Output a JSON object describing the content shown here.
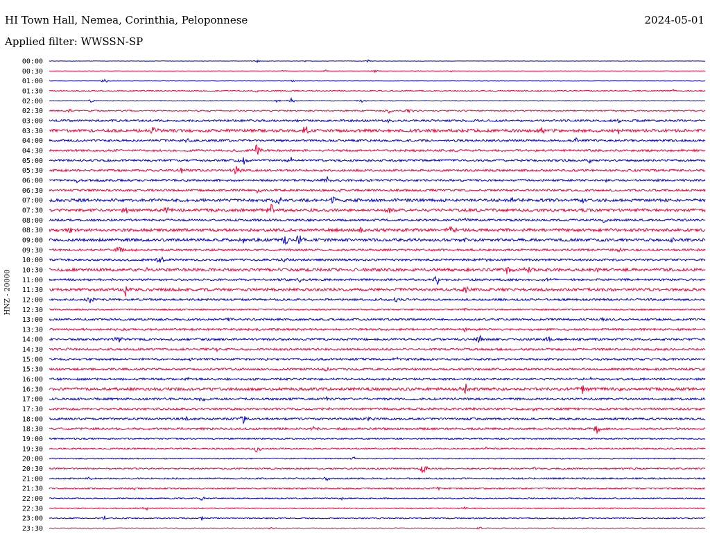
{
  "header": {
    "station": "HI Town Hall, Nemea, Corinthia, Peloponnese",
    "date": "2024-05-01",
    "filter": "Applied filter: WWSSN-SP"
  },
  "chart_data": {
    "type": "line",
    "title": "HI Town Hall, Nemea, Corinthia, Peloponnese",
    "ylabel": "HNZ - 20000",
    "colors": {
      "even": "#0000cc",
      "odd": "#ee0033"
    },
    "rows": [
      {
        "label": "00:00",
        "noise": 0.3,
        "bursts": [
          [
            150,
            2
          ],
          [
            185,
            1.5
          ],
          [
            230,
            2
          ]
        ]
      },
      {
        "label": "00:30",
        "noise": 0.3,
        "bursts": [
          [
            170,
            2
          ],
          [
            200,
            2
          ],
          [
            235,
            3
          ],
          [
            265,
            2
          ],
          [
            290,
            2
          ]
        ]
      },
      {
        "label": "01:00",
        "noise": 0.3,
        "bursts": [
          [
            40,
            4
          ],
          [
            175,
            2
          ]
        ]
      },
      {
        "label": "01:30",
        "noise": 0.8,
        "bursts": [
          [
            150,
            2
          ],
          [
            450,
            2
          ],
          [
            500,
            2
          ]
        ]
      },
      {
        "label": "02:00",
        "noise": 0.5,
        "bursts": [
          [
            30,
            3
          ],
          [
            165,
            3
          ],
          [
            175,
            6
          ],
          [
            225,
            3
          ]
        ]
      },
      {
        "label": "02:30",
        "noise": 0.9,
        "bursts": [
          [
            15,
            4
          ],
          [
            245,
            3
          ],
          [
            260,
            5
          ]
        ]
      },
      {
        "label": "03:00",
        "noise": 1.5,
        "bursts": [
          [
            245,
            6
          ],
          [
            410,
            3
          ]
        ]
      },
      {
        "label": "03:30",
        "noise": 2.0,
        "bursts": [
          [
            75,
            8
          ],
          [
            185,
            10
          ],
          [
            355,
            4
          ],
          [
            410,
            6
          ]
        ]
      },
      {
        "label": "04:00",
        "noise": 1.5,
        "bursts": [
          [
            100,
            4
          ],
          [
            380,
            3
          ]
        ]
      },
      {
        "label": "04:30",
        "noise": 1.5,
        "bursts": [
          [
            150,
            12
          ],
          [
            330,
            3
          ]
        ]
      },
      {
        "label": "05:00",
        "noise": 1.5,
        "bursts": [
          [
            140,
            6
          ],
          [
            175,
            5
          ],
          [
            390,
            6
          ]
        ]
      },
      {
        "label": "05:30",
        "noise": 1.5,
        "bursts": [
          [
            95,
            5
          ],
          [
            135,
            9
          ]
        ]
      },
      {
        "label": "06:00",
        "noise": 1.5,
        "bursts": [
          [
            20,
            3
          ],
          [
            200,
            7
          ],
          [
            400,
            3
          ]
        ]
      },
      {
        "label": "06:30",
        "noise": 1.5,
        "bursts": [
          [
            150,
            4
          ],
          [
            210,
            3
          ]
        ]
      },
      {
        "label": "07:00",
        "noise": 2.0,
        "bursts": [
          [
            165,
            9
          ],
          [
            205,
            7
          ],
          [
            335,
            6
          ],
          [
            385,
            6
          ]
        ]
      },
      {
        "label": "07:30",
        "noise": 2.0,
        "bursts": [
          [
            55,
            9
          ],
          [
            85,
            6
          ],
          [
            160,
            10
          ],
          [
            245,
            4
          ]
        ]
      },
      {
        "label": "08:00",
        "noise": 1.5,
        "bursts": [
          [
            190,
            3
          ],
          [
            300,
            3
          ],
          [
            400,
            4
          ]
        ]
      },
      {
        "label": "08:30",
        "noise": 2.0,
        "bursts": [
          [
            15,
            4
          ],
          [
            225,
            5
          ],
          [
            290,
            6
          ]
        ]
      },
      {
        "label": "09:00",
        "noise": 2.0,
        "bursts": [
          [
            140,
            6
          ],
          [
            170,
            9
          ],
          [
            180,
            10
          ],
          [
            300,
            4
          ],
          [
            450,
            6
          ]
        ]
      },
      {
        "label": "09:30",
        "noise": 1.5,
        "bursts": [
          [
            50,
            9
          ],
          [
            410,
            3
          ]
        ]
      },
      {
        "label": "10:00",
        "noise": 1.5,
        "bursts": [
          [
            80,
            8
          ],
          [
            170,
            5
          ],
          [
            315,
            6
          ]
        ]
      },
      {
        "label": "10:30",
        "noise": 2.0,
        "bursts": [
          [
            70,
            4
          ],
          [
            330,
            8
          ],
          [
            345,
            7
          ],
          [
            395,
            5
          ]
        ]
      },
      {
        "label": "11:00",
        "noise": 1.5,
        "bursts": [
          [
            180,
            5
          ],
          [
            280,
            9
          ],
          [
            360,
            4
          ]
        ]
      },
      {
        "label": "11:30",
        "noise": 2.0,
        "bursts": [
          [
            55,
            9
          ],
          [
            300,
            5
          ]
        ]
      },
      {
        "label": "12:00",
        "noise": 1.5,
        "bursts": [
          [
            30,
            7
          ],
          [
            250,
            4
          ]
        ]
      },
      {
        "label": "12:30",
        "noise": 1.0,
        "bursts": [
          [
            300,
            3
          ]
        ]
      },
      {
        "label": "13:00",
        "noise": 1.5,
        "bursts": [
          [
            130,
            4
          ],
          [
            400,
            3
          ]
        ]
      },
      {
        "label": "13:30",
        "noise": 1.5,
        "bursts": [
          [
            150,
            4
          ],
          [
            300,
            5
          ]
        ]
      },
      {
        "label": "14:00",
        "noise": 1.5,
        "bursts": [
          [
            50,
            6
          ],
          [
            310,
            10
          ],
          [
            360,
            4
          ]
        ]
      },
      {
        "label": "14:30",
        "noise": 1.5,
        "bursts": [
          [
            15,
            3
          ],
          [
            120,
            4
          ]
        ]
      },
      {
        "label": "15:00",
        "noise": 1.5,
        "bursts": [
          [
            100,
            4
          ],
          [
            250,
            3
          ]
        ]
      },
      {
        "label": "15:30",
        "noise": 1.5,
        "bursts": [
          [
            200,
            3
          ],
          [
            410,
            3
          ]
        ]
      },
      {
        "label": "16:00",
        "noise": 1.5,
        "bursts": [
          [
            100,
            3
          ],
          [
            390,
            3
          ]
        ]
      },
      {
        "label": "16:30",
        "noise": 2.0,
        "bursts": [
          [
            300,
            8
          ],
          [
            385,
            9
          ],
          [
            410,
            5
          ]
        ]
      },
      {
        "label": "17:00",
        "noise": 1.5,
        "bursts": [
          [
            110,
            4
          ],
          [
            200,
            3
          ]
        ]
      },
      {
        "label": "17:30",
        "noise": 1.5,
        "bursts": [
          [
            200,
            3
          ],
          [
            350,
            3
          ]
        ]
      },
      {
        "label": "18:00",
        "noise": 1.5,
        "bursts": [
          [
            100,
            5
          ],
          [
            140,
            8
          ],
          [
            230,
            4
          ]
        ]
      },
      {
        "label": "18:30",
        "noise": 1.5,
        "bursts": [
          [
            190,
            4
          ],
          [
            395,
            8
          ]
        ]
      },
      {
        "label": "19:00",
        "noise": 1.0,
        "bursts": [
          [
            160,
            3
          ]
        ]
      },
      {
        "label": "19:30",
        "noise": 1.0,
        "bursts": [
          [
            150,
            7
          ],
          [
            315,
            3
          ]
        ]
      },
      {
        "label": "20:00",
        "noise": 0.8,
        "bursts": [
          [
            220,
            3
          ]
        ]
      },
      {
        "label": "20:30",
        "noise": 1.0,
        "bursts": [
          [
            270,
            9
          ],
          [
            350,
            3
          ]
        ]
      },
      {
        "label": "21:00",
        "noise": 1.0,
        "bursts": [
          [
            30,
            3
          ],
          [
            200,
            3
          ]
        ]
      },
      {
        "label": "21:30",
        "noise": 1.0,
        "bursts": [
          [
            60,
            3
          ],
          [
            280,
            3
          ]
        ]
      },
      {
        "label": "22:00",
        "noise": 0.8,
        "bursts": [
          [
            110,
            3
          ],
          [
            210,
            3
          ]
        ]
      },
      {
        "label": "22:30",
        "noise": 0.8,
        "bursts": [
          [
            70,
            3
          ],
          [
            300,
            3
          ]
        ]
      },
      {
        "label": "23:00",
        "noise": 0.8,
        "bursts": [
          [
            40,
            3
          ],
          [
            110,
            3
          ]
        ]
      },
      {
        "label": "23:30",
        "noise": 0.5,
        "bursts": [
          [
            160,
            2
          ],
          [
            310,
            2
          ]
        ]
      }
    ]
  }
}
